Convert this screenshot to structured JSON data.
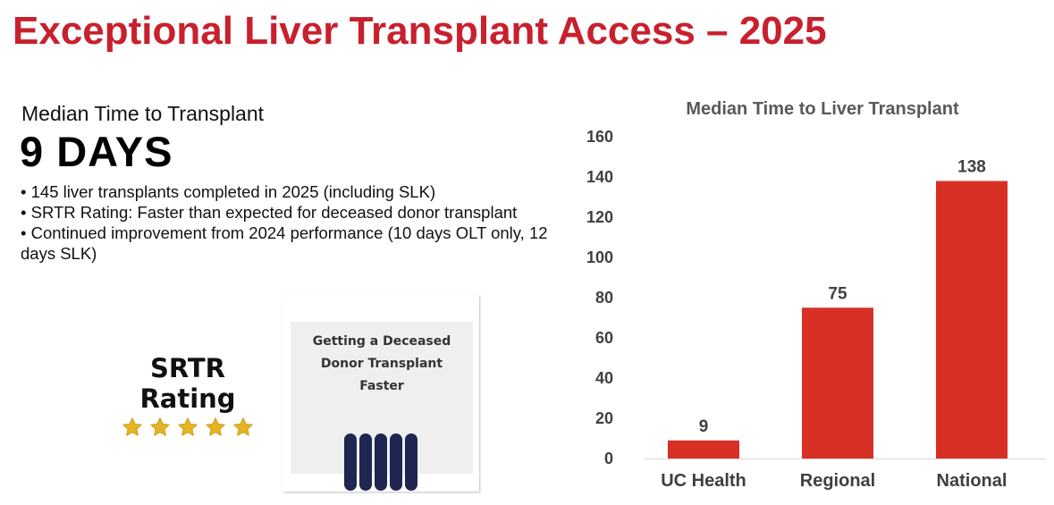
{
  "header": {
    "title": "Exceptional Liver Transplant Access – 2025"
  },
  "summary": {
    "subhead": "Median Time to Transplant",
    "headline": "9 DAYS",
    "bullets": [
      "• 145 liver transplants completed in 2025 (including SLK)",
      "• SRTR Rating: Faster than expected for deceased donor transplant",
      "• Continued improvement from 2024 performance (10 days OLT only, 12 days SLK)"
    ]
  },
  "srtr": {
    "label": "SRTR Rating",
    "stars": 5,
    "star_icon": "star-icon",
    "star_color": "#e6b422"
  },
  "card": {
    "lines": [
      "Getting a Deceased",
      "Donor Transplant",
      "Faster"
    ],
    "bars": 5,
    "bar_color": "#1f2651"
  },
  "colors": {
    "title": "#c8202d",
    "bar": "#d93025"
  },
  "chart_data": {
    "type": "bar",
    "title": "Median Time to Liver Transplant",
    "categories": [
      "UC Health",
      "Regional",
      "National"
    ],
    "values": [
      9,
      75,
      138
    ],
    "ylim": [
      0,
      160
    ],
    "yticks": [
      0,
      20,
      40,
      60,
      80,
      100,
      120,
      140,
      160
    ],
    "xlabel": "",
    "ylabel": "",
    "grid": false
  }
}
